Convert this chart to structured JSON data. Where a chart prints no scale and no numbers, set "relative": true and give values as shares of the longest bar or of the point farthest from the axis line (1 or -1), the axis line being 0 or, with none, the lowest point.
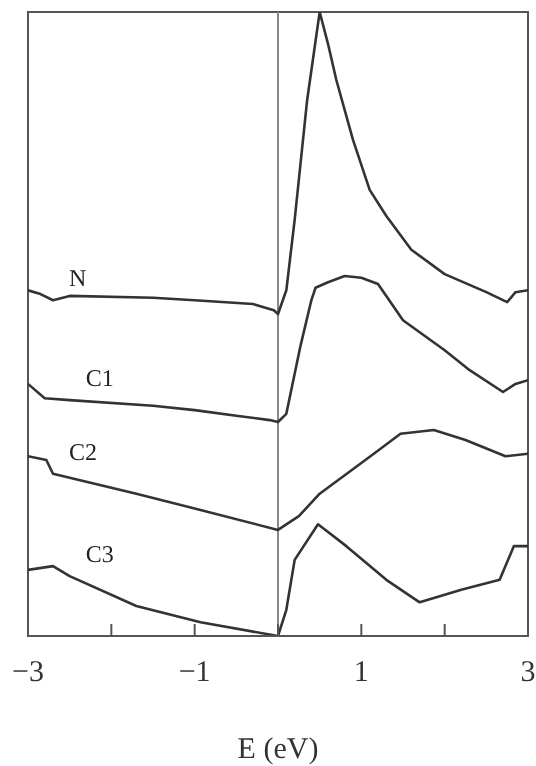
{
  "chart_data": {
    "type": "line",
    "relative": true,
    "xlabel": "E (eV)",
    "xlim": [
      -3,
      3
    ],
    "xticks": [
      -3,
      {
        "value": -2,
        "label": null
      },
      -1,
      {
        "value": 0,
        "label": null
      },
      1,
      {
        "value": 2,
        "label": null
      },
      3
    ],
    "tick_labels": "x",
    "marker": "none",
    "line_style": "solid",
    "ref_lines": [
      {
        "axis": "x",
        "value": 0,
        "color": "#888888"
      }
    ],
    "series": [
      {
        "name": "N",
        "color": "#333333",
        "x": [
          -3,
          -2.85,
          -2.7,
          -2.5,
          -1.5,
          -1,
          -0.3,
          -0.05,
          0,
          0.1,
          0.2,
          0.35,
          0.5,
          0.6,
          0.7,
          0.9,
          1.1,
          1.3,
          1.6,
          2.0,
          2.5,
          2.75,
          2.85,
          3
        ],
        "values": [
          0.554,
          0.548,
          0.538,
          0.545,
          0.542,
          0.538,
          0.532,
          0.522,
          0.516,
          0.554,
          0.667,
          0.859,
          1,
          0.949,
          0.891,
          0.795,
          0.715,
          0.673,
          0.619,
          0.58,
          0.551,
          0.535,
          0.551,
          0.554
        ]
      },
      {
        "name": "C1",
        "color": "#333333",
        "x": [
          -3,
          -2.8,
          -2.5,
          -1.5,
          -1,
          -0.5,
          -0.1,
          0,
          0.1,
          0.27,
          0.4,
          0.45,
          0.6,
          0.8,
          1.0,
          1.2,
          1.5,
          2.0,
          2.3,
          2.7,
          2.85,
          3
        ],
        "values": [
          0.404,
          0.381,
          0.378,
          0.369,
          0.362,
          0.353,
          0.346,
          0.343,
          0.356,
          0.465,
          0.538,
          0.558,
          0.567,
          0.577,
          0.574,
          0.564,
          0.506,
          0.458,
          0.426,
          0.391,
          0.404,
          0.41
        ]
      },
      {
        "name": "C2",
        "color": "#333333",
        "x": [
          -3,
          -2.78,
          -2.7,
          -1.7,
          -0.93,
          0,
          0.25,
          0.5,
          1.15,
          1.47,
          1.87,
          2.25,
          2.73,
          3
        ],
        "values": [
          0.288,
          0.282,
          0.26,
          0.228,
          0.202,
          0.17,
          0.192,
          0.228,
          0.292,
          0.324,
          0.33,
          0.314,
          0.288,
          0.292
        ]
      },
      {
        "name": "C3",
        "color": "#333333",
        "x": [
          -3,
          -2.7,
          -2.5,
          -1.7,
          -0.93,
          0,
          0.1,
          0.2,
          0.48,
          0.82,
          1.3,
          1.7,
          2.2,
          2.66,
          2.83,
          3
        ],
        "values": [
          0.106,
          0.112,
          0.096,
          0.048,
          0.022,
          0,
          0.042,
          0.122,
          0.179,
          0.144,
          0.09,
          0.054,
          0.074,
          0.09,
          0.144,
          0.144
        ]
      }
    ]
  }
}
